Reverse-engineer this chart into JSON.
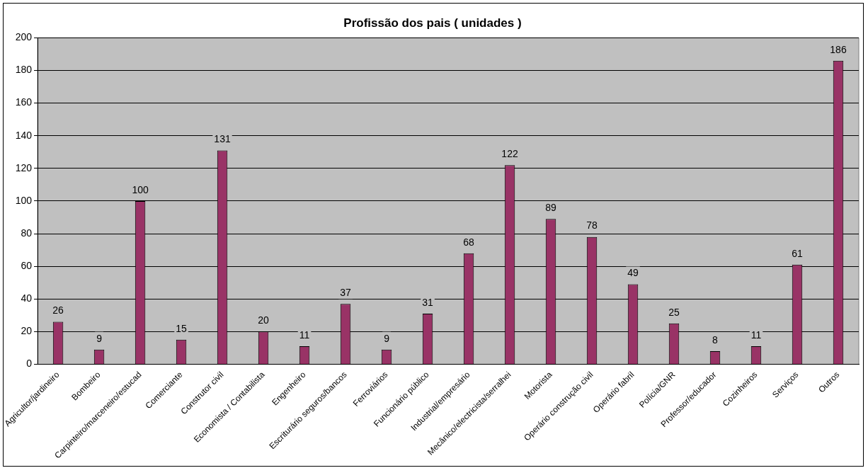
{
  "chart_data": {
    "type": "bar",
    "title": "Profissão dos pais ( unidades )",
    "categories": [
      "Agricultor/jardineiro",
      "Bombeiro",
      "Carpinteiro/marceneiro/estucad",
      "Comerciante",
      "Construtor civil",
      "Economista / Contabilista",
      "Engenheiro",
      "Escriturário seguros/bancos",
      "Ferroviários",
      "Funcionário público",
      "Industrial/empresário",
      "Mecânico/electricista/serralhei",
      "Motorista",
      "Operário construção civil",
      "Operário fabril",
      "Polícia/GNR",
      "Professor/educador",
      "Cozinheiros",
      "Serviços",
      "Outros"
    ],
    "values": [
      26,
      9,
      100,
      15,
      131,
      20,
      11,
      37,
      9,
      31,
      68,
      122,
      89,
      78,
      49,
      25,
      8,
      11,
      61,
      186
    ],
    "color": "#993366",
    "ylim": [
      0,
      200
    ],
    "yticks": [
      0,
      20,
      40,
      60,
      80,
      100,
      120,
      140,
      160,
      180,
      200
    ],
    "grid": "y",
    "legend": false,
    "data_labels": true
  }
}
